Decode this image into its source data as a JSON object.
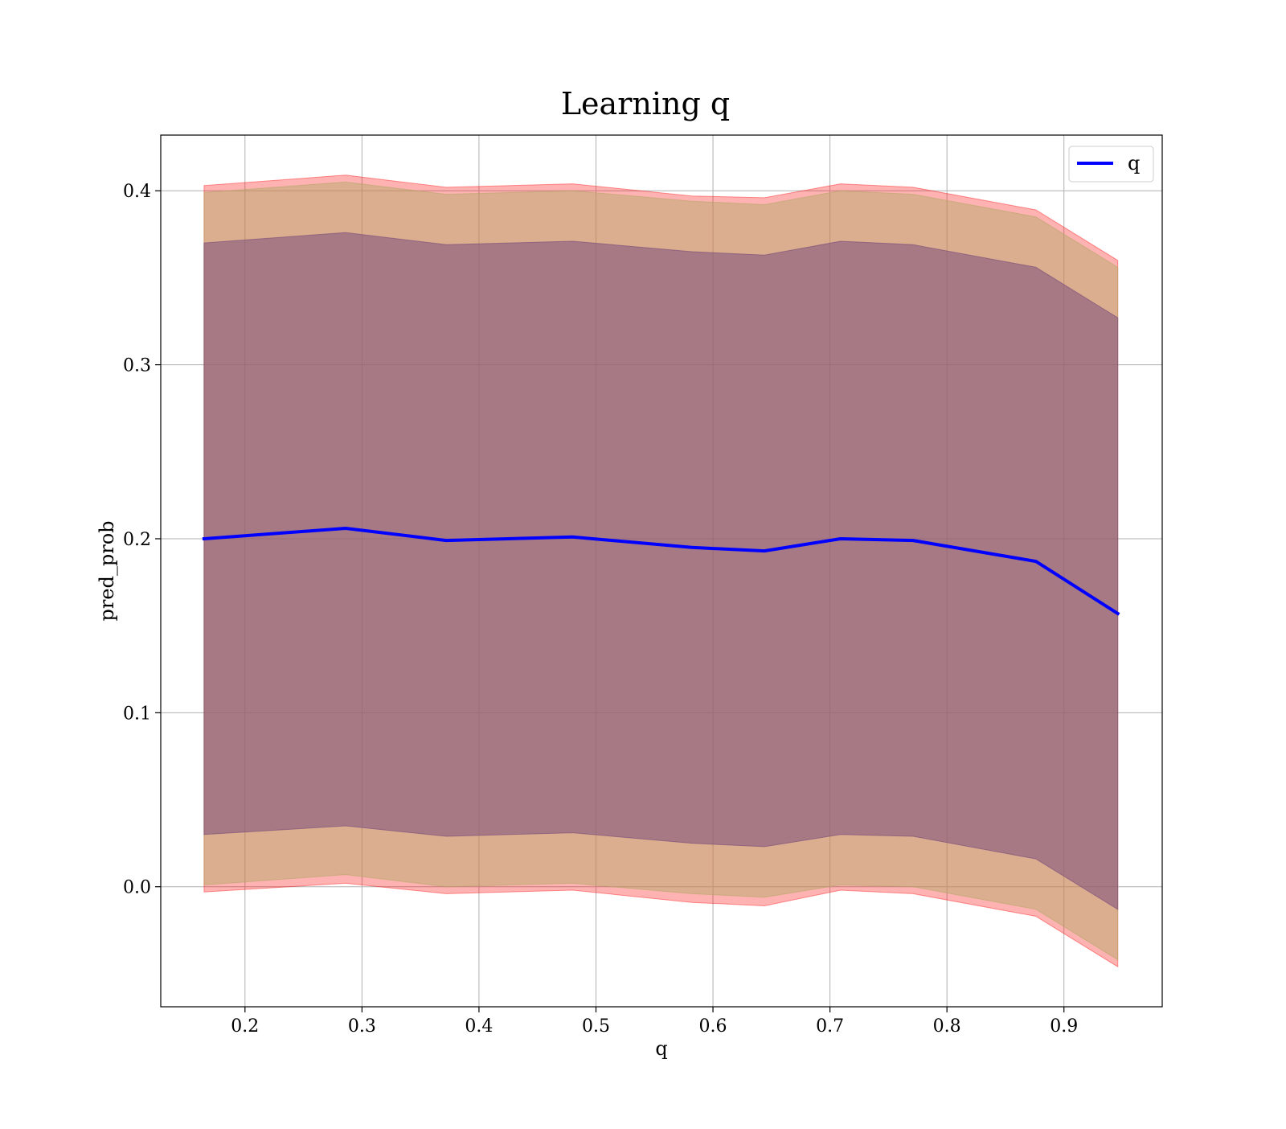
{
  "chart_data": {
    "type": "area",
    "title": "Learning q",
    "xlabel": "q",
    "ylabel": "pred_prob",
    "xlim": [
      0.128,
      0.984
    ],
    "ylim": [
      -0.069,
      0.432
    ],
    "xticks": [
      0.2,
      0.3,
      0.4,
      0.5,
      0.6,
      0.7,
      0.8,
      0.9
    ],
    "xtick_labels": [
      "0.2",
      "0.3",
      "0.4",
      "0.5",
      "0.6",
      "0.7",
      "0.8",
      "0.9"
    ],
    "yticks": [
      0.0,
      0.1,
      0.2,
      0.3,
      0.4
    ],
    "ytick_labels": [
      "0.0",
      "0.1",
      "0.2",
      "0.3",
      "0.4"
    ],
    "grid": true,
    "legend_position": "top-right",
    "x": [
      0.165,
      0.286,
      0.372,
      0.48,
      0.582,
      0.644,
      0.709,
      0.771,
      0.876,
      0.946
    ],
    "series": [
      {
        "name": "q",
        "kind": "line",
        "color": "#0000ff",
        "values": [
          0.2,
          0.206,
          0.199,
          0.201,
          0.195,
          0.193,
          0.2,
          0.199,
          0.187,
          0.157
        ]
      }
    ],
    "bands": [
      {
        "role": "outer",
        "color": "#ff0000",
        "opacity": 0.3,
        "upper": [
          0.403,
          0.409,
          0.402,
          0.404,
          0.397,
          0.396,
          0.404,
          0.402,
          0.389,
          0.36
        ],
        "lower": [
          -0.003,
          0.002,
          -0.004,
          -0.002,
          -0.009,
          -0.011,
          -0.002,
          -0.004,
          -0.017,
          -0.046
        ]
      },
      {
        "role": "middle",
        "color": "#b5a96a",
        "opacity": 0.5,
        "upper": [
          0.399,
          0.405,
          0.398,
          0.4,
          0.394,
          0.392,
          0.4,
          0.398,
          0.385,
          0.356
        ],
        "lower": [
          0.001,
          0.007,
          0.0,
          0.002,
          -0.004,
          -0.006,
          0.001,
          0.0,
          -0.013,
          -0.042
        ]
      },
      {
        "role": "inner",
        "color": "#7d4e7b",
        "opacity": 0.55,
        "upper": [
          0.37,
          0.376,
          0.369,
          0.371,
          0.365,
          0.363,
          0.371,
          0.369,
          0.356,
          0.327
        ],
        "lower": [
          0.03,
          0.035,
          0.029,
          0.031,
          0.025,
          0.023,
          0.03,
          0.029,
          0.016,
          -0.013
        ]
      }
    ]
  }
}
